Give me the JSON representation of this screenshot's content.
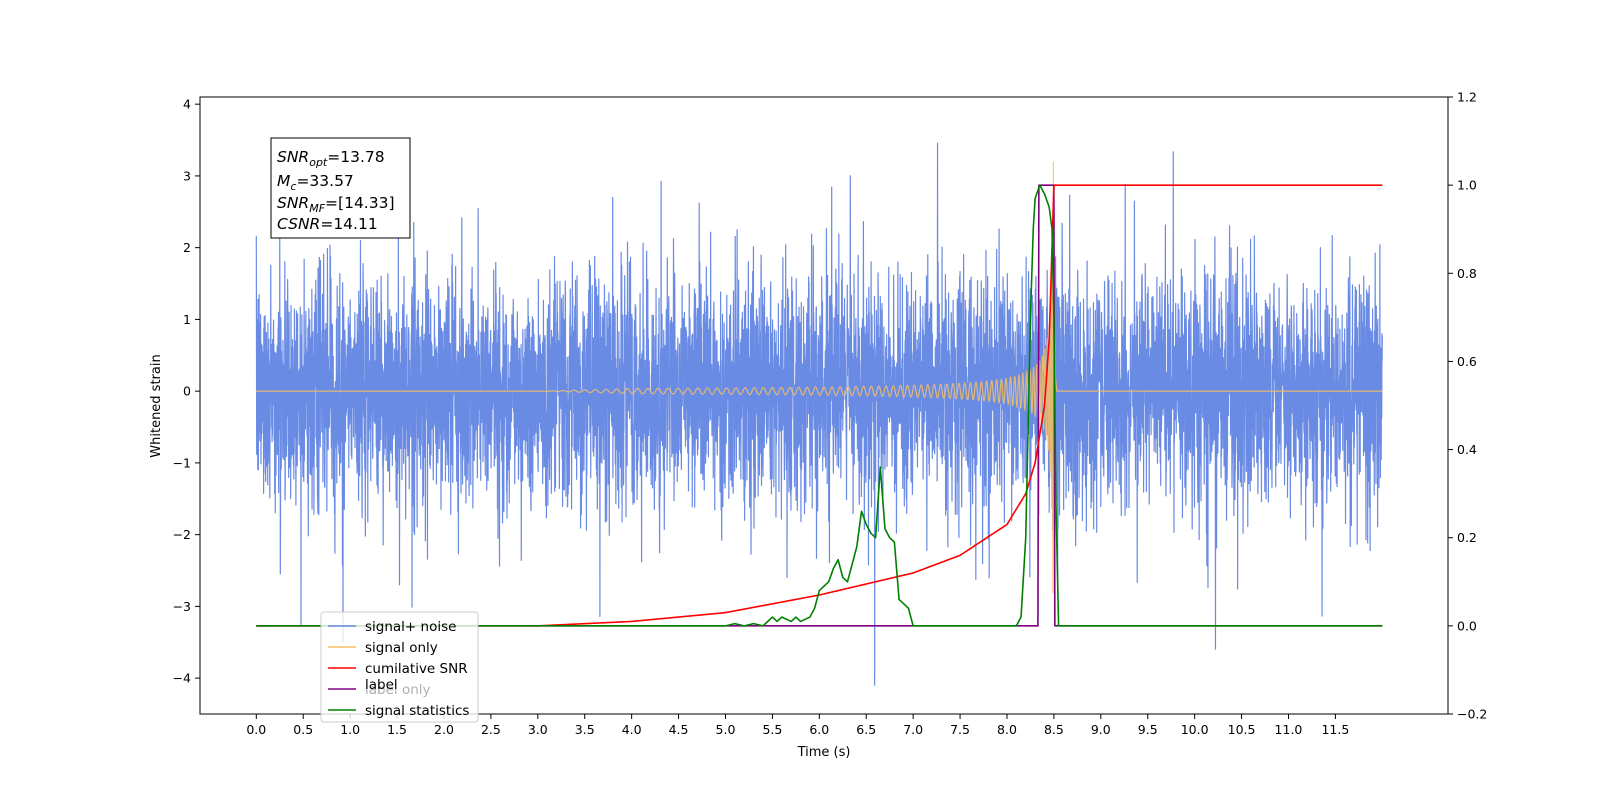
{
  "chart_data": {
    "type": "line",
    "xlabel": "Time (s)",
    "ylabel": "Whitened strain",
    "xlim": [
      -0.6,
      12.7
    ],
    "ylim": [
      -4.5,
      4.1
    ],
    "y2lim": [
      -0.2,
      1.2
    ],
    "x_ticks": [
      "0.0",
      "0.5",
      "1.0",
      "1.5",
      "2.0",
      "2.5",
      "3.0",
      "3.5",
      "4.0",
      "4.5",
      "5.0",
      "5.5",
      "6.0",
      "6.5",
      "7.0",
      "7.5",
      "8.0",
      "8.5",
      "9.0",
      "9.5",
      "10.0",
      "10.5",
      "11.0",
      "11.5"
    ],
    "y_ticks": [
      "4",
      "3",
      "2",
      "1",
      "0",
      "−1",
      "−2",
      "−3",
      "−4"
    ],
    "y2_ticks": [
      "1.2",
      "1.0",
      "0.8",
      "0.6",
      "0.4",
      "0.2",
      "0.0",
      "−0.2"
    ],
    "annotation": {
      "snr_opt": {
        "sym": "SNR",
        "sub": "opt",
        "val": "=13.78"
      },
      "mc": {
        "sym": "M",
        "sub": "c",
        "val": "=33.57"
      },
      "snr_mf": {
        "sym": "SNR",
        "sub": "MF",
        "val": "=[14.33]"
      },
      "csnr": {
        "sym": "CSNR",
        "sub": "",
        "val": "=14.11"
      }
    },
    "legend": {
      "placement": "lower-left",
      "entries": [
        {
          "label": "signal+ noise",
          "color": "#6a8be4"
        },
        {
          "label": "signal only",
          "color": "#f5bf64"
        },
        {
          "label": "cumilative SNR",
          "color": "#ff0000"
        },
        {
          "label": "label",
          "color": "#800080"
        },
        {
          "label": "signal statistics",
          "color": "#008000"
        }
      ],
      "hidden_label": "label only"
    },
    "series": [
      {
        "name": "signal+ noise",
        "axis": "left",
        "color": "#6a8be4",
        "x_range": [
          0.0,
          12.0
        ],
        "noise_sigma": 1.0,
        "y_range_observed": [
          -4.1,
          3.72
        ]
      },
      {
        "name": "signal only",
        "axis": "left",
        "color": "#f5bf64",
        "chirp_start_time": 4.0,
        "merger_time": 8.5,
        "peak_amplitude": 3.2
      },
      {
        "name": "cumilative SNR",
        "axis": "right",
        "color": "#ff0000",
        "x": [
          0.0,
          3.0,
          4.0,
          5.0,
          6.0,
          7.0,
          7.5,
          8.0,
          8.2,
          8.3,
          8.4,
          8.45,
          8.5,
          12.0
        ],
        "y": [
          0.0,
          0.0,
          0.01,
          0.03,
          0.07,
          0.12,
          0.16,
          0.23,
          0.3,
          0.37,
          0.5,
          0.65,
          1.0,
          1.0
        ]
      },
      {
        "name": "label",
        "axis": "right",
        "color": "#800080",
        "x": [
          0.0,
          8.33,
          8.34,
          8.5,
          8.51,
          12.0
        ],
        "y": [
          0.0,
          0.0,
          1.0,
          1.0,
          0.0,
          0.0
        ]
      },
      {
        "name": "signal statistics",
        "axis": "right",
        "color": "#008000",
        "x": [
          0.0,
          5.0,
          5.1,
          5.2,
          5.3,
          5.4,
          5.5,
          5.55,
          5.6,
          5.65,
          5.7,
          5.75,
          5.8,
          5.9,
          5.95,
          6.0,
          6.1,
          6.15,
          6.2,
          6.25,
          6.3,
          6.4,
          6.45,
          6.5,
          6.55,
          6.6,
          6.65,
          6.7,
          6.75,
          6.8,
          6.85,
          6.9,
          6.95,
          7.0,
          7.1,
          7.5,
          8.0,
          8.1,
          8.15,
          8.2,
          8.25,
          8.28,
          8.3,
          8.35,
          8.4,
          8.45,
          8.48,
          8.5,
          8.52,
          8.55,
          8.6,
          12.0
        ],
        "y": [
          0.0,
          0.0,
          0.005,
          0.0,
          0.005,
          0.0,
          0.02,
          0.01,
          0.02,
          0.015,
          0.01,
          0.02,
          0.01,
          0.02,
          0.04,
          0.08,
          0.1,
          0.13,
          0.15,
          0.11,
          0.1,
          0.18,
          0.26,
          0.23,
          0.21,
          0.2,
          0.36,
          0.22,
          0.2,
          0.19,
          0.06,
          0.05,
          0.04,
          0.0,
          0.0,
          0.0,
          0.0,
          0.0,
          0.02,
          0.2,
          0.7,
          0.9,
          0.97,
          1.0,
          0.98,
          0.95,
          0.9,
          0.7,
          0.3,
          0.0,
          0.0,
          0.0
        ]
      }
    ]
  }
}
